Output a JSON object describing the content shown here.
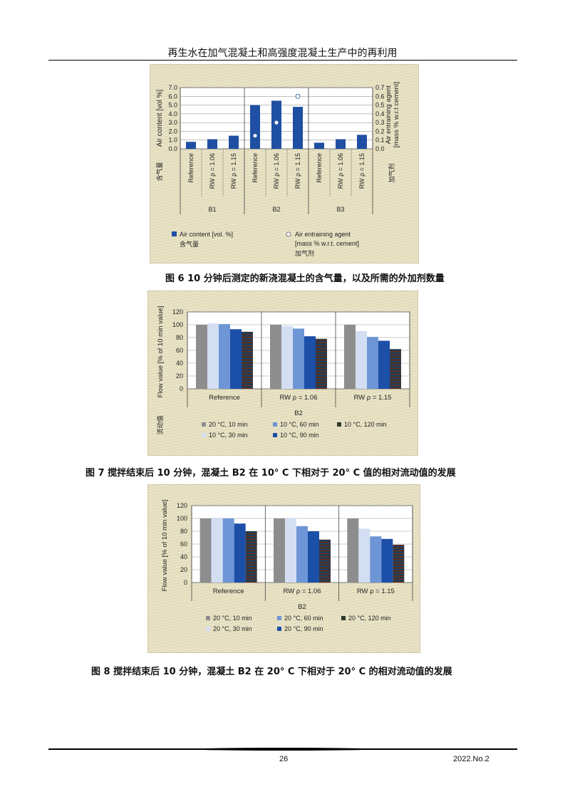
{
  "header": {
    "running_title": "再生水在加气混凝土和高强度混凝土生产中的再利用"
  },
  "footer": {
    "page_number": "26",
    "issue": "2022.No.2"
  },
  "figures": [
    {
      "caption": "图 6   10 分钟后测定的新浇混凝土的含气量，以及所需的外加剂数量"
    },
    {
      "caption": "图 7   搅拌结束后 10 分钟，混凝土 B2 在 10° C 下相对于 20° C 值的相对流动值的发展"
    },
    {
      "caption": "图 8   搅拌结束后 10 分钟，混凝土 B2 在 20° C 下相对于 20° C 的相对流动值的发展"
    }
  ],
  "chart_data": [
    {
      "type": "bar",
      "groups": [
        "B1",
        "B2",
        "B3"
      ],
      "categories": [
        "Reference",
        "RW ρ = 1.06",
        "RW ρ = 1.15"
      ],
      "ylabel": "Air content [vol %]",
      "ylabel_cn": "含气量",
      "ylim": [
        0,
        7
      ],
      "yticks": [
        "0.0",
        "1.0",
        "2.0",
        "3.0",
        "4.0",
        "5.0",
        "6.0",
        "7.0"
      ],
      "y2label": [
        "Air entraining agent",
        "[mass % w.r.t cement]"
      ],
      "y2label_cn": "加气剂",
      "y2lim": [
        0,
        0.7
      ],
      "y2ticks": [
        "0.0",
        "0.1",
        "0.2",
        "0.3",
        "0.4",
        "0.5",
        "0.6",
        "0.7"
      ],
      "grid": true,
      "series": [
        {
          "name": "Air content [vol. %]",
          "name_cn": "含气量",
          "kind": "bar",
          "axis": "left",
          "color": "#1f4fa3",
          "values": [
            [
              0.8,
              1.1,
              1.5
            ],
            [
              5.0,
              5.5,
              4.8
            ],
            [
              0.7,
              1.1,
              1.6
            ]
          ]
        },
        {
          "name": "Air entraining agent",
          "name2": "[mass % w.r.t. cement]",
          "name_cn": "加气剂",
          "kind": "point",
          "axis": "right",
          "color": "#ffffff",
          "values": [
            [
              null,
              null,
              null
            ],
            [
              0.15,
              0.3,
              0.6
            ],
            [
              null,
              null,
              null
            ]
          ]
        }
      ]
    },
    {
      "type": "bar",
      "groups_label": "B2",
      "categories": [
        "Reference",
        "RW ρ = 1.06",
        "RW ρ = 1.15"
      ],
      "ylabel": "Flow value [% of 10 min value]",
      "ylabel_cn": "流动值",
      "ylim": [
        0,
        120
      ],
      "yticks": [
        "0",
        "20",
        "40",
        "60",
        "80",
        "100",
        "120"
      ],
      "grid": true,
      "legend": "bottom",
      "series": [
        {
          "name": "20 °C, 10 min",
          "color": "#8d8d8d",
          "values": [
            100,
            100,
            100
          ]
        },
        {
          "name": "10 °C, 30 min",
          "color": "#d3def3",
          "values": [
            102,
            98,
            90
          ]
        },
        {
          "name": "10 °C, 60 min",
          "color": "#6e96d6",
          "values": [
            101,
            94,
            81
          ]
        },
        {
          "name": "10 °C, 90 min",
          "color": "#1c4fa8",
          "values": [
            93,
            82,
            75
          ]
        },
        {
          "name": "10 °C, 120 min",
          "color": "#2b3a2a",
          "values": [
            89,
            78,
            62
          ]
        }
      ]
    },
    {
      "type": "bar",
      "groups_label": "B2",
      "categories": [
        "Reference",
        "RW ρ = 1.06",
        "RW ρ = 1.15"
      ],
      "ylabel": "Flow value [% of 10 min value]",
      "ylim": [
        0,
        120
      ],
      "yticks": [
        "0",
        "20",
        "40",
        "60",
        "80",
        "100",
        "120"
      ],
      "grid": true,
      "legend": "bottom",
      "series": [
        {
          "name": "20 °C, 10 min",
          "color": "#8d8d8d",
          "values": [
            100,
            100,
            100
          ]
        },
        {
          "name": "20 °C, 30 min",
          "color": "#d3def3",
          "values": [
            101,
            100,
            84
          ]
        },
        {
          "name": "20 °C, 60 min",
          "color": "#6e96d6",
          "values": [
            100,
            88,
            72
          ]
        },
        {
          "name": "20 °C, 90 min",
          "color": "#1c4fa8",
          "values": [
            92,
            80,
            68
          ]
        },
        {
          "name": "20 °C, 120 min",
          "color": "#2b3a2a",
          "values": [
            80,
            67,
            59
          ]
        }
      ]
    }
  ]
}
